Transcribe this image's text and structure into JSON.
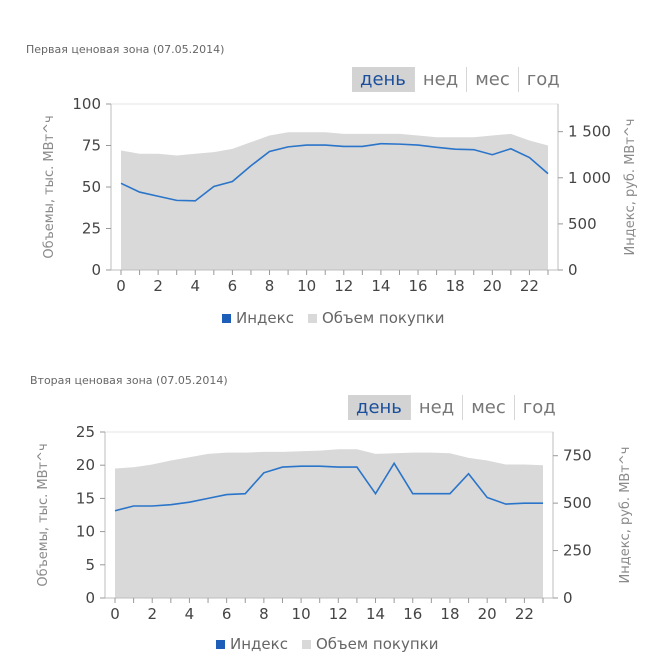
{
  "tabs": [
    "день",
    "нед",
    "мес",
    "год"
  ],
  "active_tab": 0,
  "colors": {
    "index_line": "#2a74c9",
    "volume_area": "#d9d9d9",
    "legend_index": "#1d5fb8",
    "tab_active_text": "#1b4f9c"
  },
  "chart_data": [
    {
      "type": "line",
      "title": "Первая ценовая зона (07.05.2014)",
      "ylabel_left": "Объемы, тыс. МВт^ч",
      "ylabel_right": "Индекс, руб. МВт^ч",
      "x": [
        0,
        1,
        2,
        3,
        4,
        5,
        6,
        7,
        8,
        9,
        10,
        11,
        12,
        13,
        14,
        15,
        16,
        17,
        18,
        19,
        20,
        21,
        22,
        23
      ],
      "x_tick_labels": [
        "0",
        "2",
        "4",
        "6",
        "8",
        "10",
        "12",
        "14",
        "16",
        "18",
        "20",
        "22"
      ],
      "y_left_ticks": [
        "0",
        "25",
        "50",
        "75",
        "100"
      ],
      "y_left_lim": [
        0,
        100
      ],
      "y_right_ticks": [
        "0",
        "500",
        "1 000",
        "1 500"
      ],
      "y_right_lim": [
        0,
        1800
      ],
      "series": [
        {
          "name": "Индекс",
          "axis": "right",
          "kind": "line",
          "values": [
            940,
            845,
            800,
            755,
            750,
            905,
            960,
            1130,
            1285,
            1335,
            1355,
            1355,
            1340,
            1340,
            1370,
            1365,
            1355,
            1330,
            1310,
            1305,
            1250,
            1315,
            1220,
            1045
          ]
        },
        {
          "name": "Объем покупки",
          "axis": "left",
          "kind": "area",
          "values": [
            72,
            70,
            70,
            69,
            70,
            71,
            73,
            77,
            81,
            83,
            83,
            83,
            82,
            82,
            82,
            82,
            81,
            80,
            80,
            80,
            81,
            82,
            78,
            75
          ]
        }
      ],
      "legend": [
        "Индекс",
        "Объем покупки"
      ],
      "legend_position": "bottom"
    },
    {
      "type": "line",
      "title": "Вторая ценовая зона (07.05.2014)",
      "ylabel_left": "Объемы, тыс. МВт^ч",
      "ylabel_right": "Индекс, руб. МВт^ч",
      "x": [
        0,
        1,
        2,
        3,
        4,
        5,
        6,
        7,
        8,
        9,
        10,
        11,
        12,
        13,
        14,
        15,
        16,
        17,
        18,
        19,
        20,
        21,
        22,
        23
      ],
      "x_tick_labels": [
        "0",
        "2",
        "4",
        "6",
        "8",
        "10",
        "12",
        "14",
        "16",
        "18",
        "20",
        "22"
      ],
      "y_left_ticks": [
        "0",
        "5",
        "10",
        "15",
        "20",
        "25"
      ],
      "y_left_lim": [
        0,
        25
      ],
      "y_right_ticks": [
        "0",
        "250",
        "500",
        "750"
      ],
      "y_right_lim": [
        0,
        875
      ],
      "series": [
        {
          "name": "Индекс",
          "axis": "right",
          "kind": "line",
          "values": [
            460,
            485,
            485,
            492,
            505,
            525,
            545,
            550,
            660,
            690,
            695,
            695,
            690,
            690,
            550,
            710,
            550,
            550,
            550,
            655,
            530,
            495,
            500,
            500
          ]
        },
        {
          "name": "Объем покупки",
          "axis": "left",
          "kind": "area",
          "values": [
            19.5,
            19.7,
            20.1,
            20.7,
            21.2,
            21.7,
            21.9,
            21.9,
            22.0,
            22.0,
            22.1,
            22.2,
            22.4,
            22.4,
            21.7,
            21.8,
            21.9,
            21.9,
            21.8,
            21.1,
            20.7,
            20.1,
            20.1,
            20.0
          ]
        }
      ],
      "legend": [
        "Индекс",
        "Объем покупки"
      ],
      "legend_position": "bottom"
    }
  ]
}
